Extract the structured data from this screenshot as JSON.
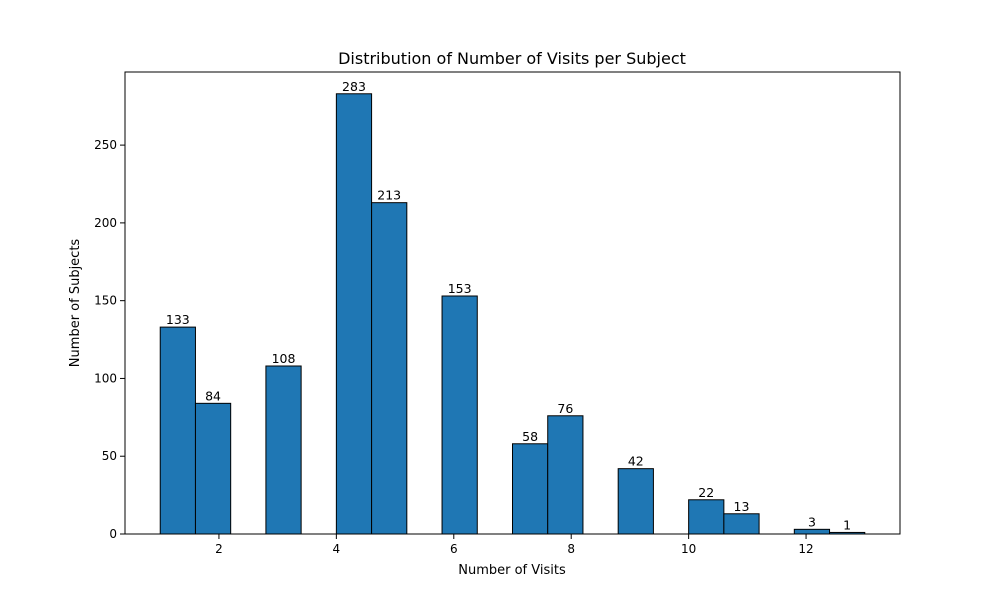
{
  "chart_data": {
    "type": "bar",
    "title": "Distribution of Number of Visits per Subject",
    "xlabel": "Number of Visits",
    "ylabel": "Number of Subjects",
    "xlim": [
      0.4,
      13.6
    ],
    "ylim": [
      0,
      297
    ],
    "xticks": [
      2,
      4,
      6,
      8,
      10,
      12
    ],
    "yticks": [
      0,
      50,
      100,
      150,
      200,
      250
    ],
    "grid": false,
    "bins": [
      {
        "start": 1.0,
        "end": 1.6,
        "value": 133
      },
      {
        "start": 1.6,
        "end": 2.2,
        "value": 84
      },
      {
        "start": 2.2,
        "end": 2.8,
        "value": 0
      },
      {
        "start": 2.8,
        "end": 3.4,
        "value": 108
      },
      {
        "start": 3.4,
        "end": 4.0,
        "value": 0
      },
      {
        "start": 4.0,
        "end": 4.6,
        "value": 283
      },
      {
        "start": 4.6,
        "end": 5.2,
        "value": 213
      },
      {
        "start": 5.2,
        "end": 5.8,
        "value": 0
      },
      {
        "start": 5.8,
        "end": 6.4,
        "value": 153
      },
      {
        "start": 6.4,
        "end": 7.0,
        "value": 0
      },
      {
        "start": 7.0,
        "end": 7.6,
        "value": 58
      },
      {
        "start": 7.6,
        "end": 8.2,
        "value": 76
      },
      {
        "start": 8.2,
        "end": 8.8,
        "value": 0
      },
      {
        "start": 8.8,
        "end": 9.4,
        "value": 42
      },
      {
        "start": 9.4,
        "end": 10.0,
        "value": 0
      },
      {
        "start": 10.0,
        "end": 10.6,
        "value": 22
      },
      {
        "start": 10.6,
        "end": 11.2,
        "value": 13
      },
      {
        "start": 11.2,
        "end": 11.8,
        "value": 0
      },
      {
        "start": 11.8,
        "end": 12.4,
        "value": 3
      },
      {
        "start": 12.4,
        "end": 13.0,
        "value": 1
      }
    ],
    "bar_color": "#1f77b4",
    "edge_color": "#000000"
  }
}
